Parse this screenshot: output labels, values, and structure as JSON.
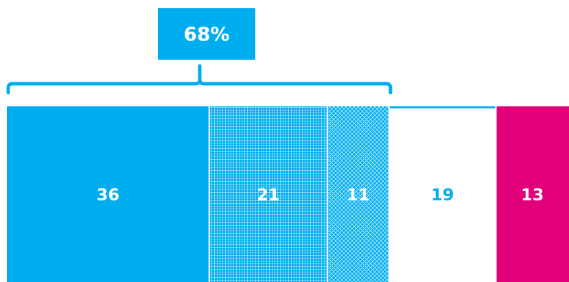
{
  "colors": {
    "primary": "#00aeef",
    "accent": "#e2007a",
    "white": "#ffffff"
  },
  "chart_data": {
    "type": "bar",
    "orientation": "horizontal-stacked",
    "title": "",
    "categories": [
      "36",
      "21",
      "11",
      "19",
      "13"
    ],
    "values": [
      36,
      21,
      11,
      19,
      13
    ],
    "segments": [
      {
        "value": 36,
        "label": "36",
        "fill": "solid",
        "color": "#00aeef"
      },
      {
        "value": 21,
        "label": "21",
        "fill": "grid-pattern",
        "color": "#00aeef"
      },
      {
        "value": 11,
        "label": "11",
        "fill": "diamond-pattern",
        "color": "#00aeef"
      },
      {
        "value": 19,
        "label": "19",
        "fill": "white",
        "color": "#00aeef"
      },
      {
        "value": 13,
        "label": "13",
        "fill": "solid",
        "color": "#e2007a"
      }
    ],
    "bracket": {
      "label": "68%",
      "from_segment": 0,
      "to_segment": 2
    }
  }
}
